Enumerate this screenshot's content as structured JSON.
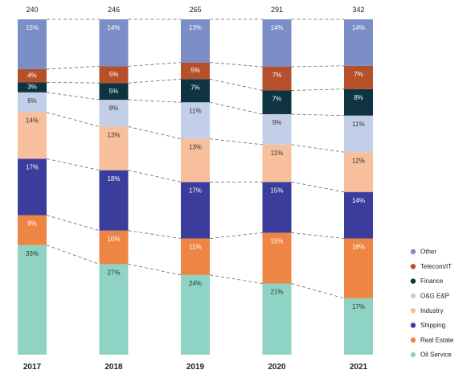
{
  "chart_data": {
    "type": "bar",
    "stacked": true,
    "normalized": true,
    "categories": [
      "2017",
      "2018",
      "2019",
      "2020",
      "2021"
    ],
    "totals": [
      "240",
      "246",
      "265",
      "291",
      "342"
    ],
    "series": [
      {
        "name": "Oil Service",
        "color": "#8fd3c5",
        "label_color": "dark",
        "values": [
          33,
          27,
          24,
          21,
          17
        ]
      },
      {
        "name": "Real Estate",
        "color": "#ee8544",
        "label_color": "light",
        "values": [
          9,
          10,
          11,
          15,
          18
        ]
      },
      {
        "name": "Shipping",
        "color": "#3a3d9b",
        "label_color": "light",
        "values": [
          17,
          18,
          17,
          15,
          14
        ]
      },
      {
        "name": "Industry",
        "color": "#f8bf9c",
        "label_color": "dark",
        "values": [
          14,
          13,
          13,
          11,
          12
        ]
      },
      {
        "name": "O&G E&P",
        "color": "#c3cfe8",
        "label_color": "dark",
        "values": [
          6,
          8,
          11,
          9,
          11
        ]
      },
      {
        "name": "Finance",
        "color": "#0d3440",
        "label_color": "light",
        "values": [
          3,
          5,
          7,
          7,
          8
        ]
      },
      {
        "name": "Telecom/IT",
        "color": "#b5502b",
        "label_color": "light",
        "values": [
          4,
          5,
          5,
          7,
          7
        ]
      },
      {
        "name": "Other",
        "color": "#7b8ec7",
        "label_color": "light",
        "values": [
          15,
          14,
          13,
          14,
          14
        ]
      }
    ],
    "value_suffix": "%",
    "legend_order": [
      "Other",
      "Telecom/IT",
      "Finance",
      "O&G E&P",
      "Industry",
      "Shipping",
      "Real Estate",
      "Oil Service"
    ],
    "legend_position": "right",
    "connectors": "dashed",
    "grid": false
  }
}
